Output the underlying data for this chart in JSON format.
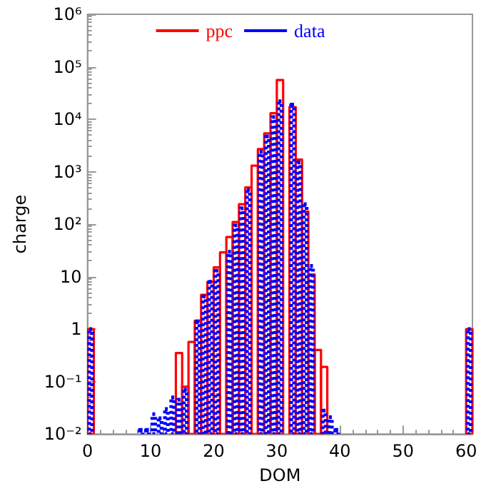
{
  "chart_data": {
    "type": "histogram",
    "xlabel": "DOM",
    "ylabel": "charge",
    "log": "y",
    "legend": "top",
    "grid": false,
    "bins": [
      0,
      1,
      2,
      3,
      4,
      5,
      6,
      7,
      8,
      9,
      10,
      11,
      12,
      13,
      14,
      15,
      16,
      17,
      18,
      19,
      20,
      21,
      22,
      23,
      24,
      25,
      26,
      27,
      28,
      29,
      30,
      31,
      32,
      33,
      34,
      35,
      36,
      37,
      38,
      39,
      40,
      41,
      42,
      43,
      44,
      45,
      46,
      47,
      48,
      49,
      50,
      51,
      52,
      53,
      54,
      55,
      56,
      57,
      58,
      59,
      60,
      61
    ],
    "xlim": [
      0,
      61
    ],
    "xticks": [
      0,
      10,
      20,
      30,
      40,
      50,
      60
    ],
    "ylim": [
      0.01,
      1000000
    ],
    "yticks": [
      {
        "value": 0.01,
        "label": "10⁻²"
      },
      {
        "value": 0.1,
        "label": "10⁻¹"
      },
      1,
      10,
      {
        "value": 100,
        "label": "10²"
      },
      {
        "value": 1000,
        "label": "10³"
      },
      {
        "value": 10000,
        "label": "10⁴"
      },
      {
        "value": 100000,
        "label": "10⁵"
      },
      {
        "value": 1000000,
        "label": "10⁶"
      }
    ],
    "series": [
      {
        "name": "ppc",
        "color": "#ff0000",
        "line_style": "solid",
        "values": [
          1,
          null,
          null,
          null,
          null,
          null,
          null,
          null,
          null,
          null,
          null,
          null,
          null,
          null,
          0.35,
          0.08,
          0.57,
          1.45,
          4.5,
          8,
          15,
          29,
          57,
          110,
          240,
          500,
          1300,
          2700,
          5400,
          13000,
          56000,
          null,
          17000,
          1700,
          175,
          11,
          0.4,
          0.19,
          null,
          null,
          null,
          null,
          null,
          null,
          null,
          null,
          null,
          null,
          null,
          null,
          null,
          null,
          null,
          null,
          null,
          null,
          null,
          null,
          null,
          null,
          1
        ]
      },
      {
        "name": "data",
        "color": "#0000ff",
        "line_style": "dotted",
        "values": [
          1,
          null,
          null,
          null,
          null,
          null,
          null,
          null,
          0.012,
          0.012,
          0.024,
          0.02,
          0.03,
          0.05,
          0.045,
          0.07,
          null,
          1.4,
          4.2,
          8,
          13,
          null,
          30,
          95,
          200,
          450,
          null,
          2400,
          4700,
          11000,
          22000,
          null,
          19000,
          1500,
          240,
          16,
          null,
          0.028,
          0.021,
          0.012,
          null,
          null,
          null,
          null,
          null,
          null,
          null,
          null,
          null,
          null,
          null,
          null,
          null,
          null,
          null,
          null,
          null,
          null,
          null,
          null,
          1
        ]
      }
    ]
  }
}
